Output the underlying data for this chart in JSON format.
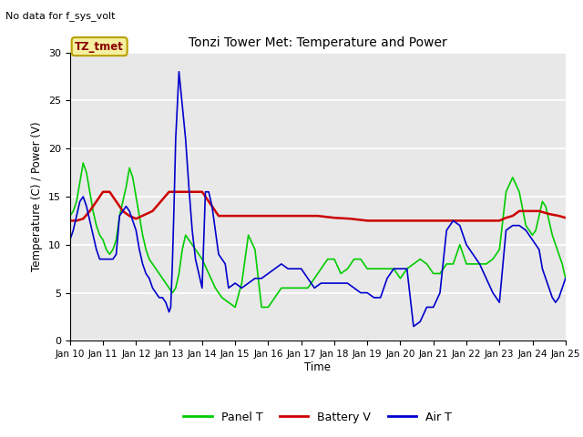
{
  "title": "Tonzi Tower Met: Temperature and Power",
  "ylabel": "Temperature (C) / Power (V)",
  "xlabel": "Time",
  "no_data_text": "No data for f_sys_volt",
  "legend_label": "TZ_tmet",
  "ylim": [
    0,
    30
  ],
  "xlim": [
    0,
    15
  ],
  "bg_color": "#ffffff",
  "plot_bg_color": "#e8e8e8",
  "x_tick_labels": [
    "Jan 10",
    "Jan 11",
    "Jan 12",
    "Jan 13",
    "Jan 14",
    "Jan 15",
    "Jan 16",
    "Jan 17",
    "Jan 18",
    "Jan 19",
    "Jan 20",
    "Jan 21",
    "Jan 22",
    "Jan 23",
    "Jan 24",
    "Jan 25"
  ],
  "panel_T_color": "#00cc00",
  "battery_V_color": "#cc0000",
  "air_T_color": "#0000cc",
  "panel_T_x": [
    0.0,
    0.1,
    0.2,
    0.3,
    0.4,
    0.5,
    0.6,
    0.7,
    0.8,
    0.9,
    1.0,
    1.1,
    1.2,
    1.3,
    1.4,
    1.5,
    1.6,
    1.7,
    1.8,
    1.9,
    2.0,
    2.1,
    2.2,
    2.3,
    2.4,
    2.5,
    2.6,
    2.7,
    2.8,
    2.9,
    3.0,
    3.1,
    3.2,
    3.3,
    3.4,
    3.5,
    3.6,
    3.7,
    3.8,
    3.9,
    4.0,
    4.2,
    4.4,
    4.6,
    4.8,
    5.0,
    5.2,
    5.4,
    5.6,
    5.8,
    6.0,
    6.2,
    6.4,
    6.6,
    6.8,
    7.0,
    7.2,
    7.4,
    7.6,
    7.8,
    8.0,
    8.2,
    8.4,
    8.6,
    8.8,
    9.0,
    9.2,
    9.4,
    9.6,
    9.8,
    10.0,
    10.2,
    10.4,
    10.6,
    10.8,
    11.0,
    11.2,
    11.4,
    11.6,
    11.8,
    12.0,
    12.2,
    12.4,
    12.6,
    12.8,
    13.0,
    13.2,
    13.4,
    13.6,
    13.8,
    14.0,
    14.1,
    14.2,
    14.3,
    14.4,
    14.5,
    14.6,
    14.7,
    14.8,
    14.9,
    15.0
  ],
  "panel_T_y": [
    13.0,
    13.5,
    14.5,
    16.5,
    18.5,
    17.5,
    15.5,
    13.5,
    12.0,
    11.0,
    10.5,
    9.5,
    9.0,
    9.5,
    10.5,
    13.0,
    14.5,
    16.0,
    18.0,
    17.0,
    15.0,
    13.0,
    11.0,
    9.5,
    8.5,
    8.0,
    7.5,
    7.0,
    6.5,
    6.0,
    5.5,
    5.0,
    5.5,
    7.0,
    9.5,
    11.0,
    10.5,
    10.0,
    9.5,
    9.0,
    8.5,
    7.0,
    5.5,
    4.5,
    4.0,
    3.5,
    6.0,
    11.0,
    9.5,
    3.5,
    3.5,
    4.5,
    5.5,
    5.5,
    5.5,
    5.5,
    5.5,
    6.5,
    7.5,
    8.5,
    8.5,
    7.0,
    7.5,
    8.5,
    8.5,
    7.5,
    7.5,
    7.5,
    7.5,
    7.5,
    6.5,
    7.5,
    8.0,
    8.5,
    8.0,
    7.0,
    7.0,
    8.0,
    8.0,
    10.0,
    8.0,
    8.0,
    8.0,
    8.0,
    8.5,
    9.5,
    15.5,
    17.0,
    15.5,
    12.0,
    11.0,
    11.5,
    13.0,
    14.5,
    14.0,
    12.5,
    11.0,
    10.0,
    9.0,
    8.0,
    6.5
  ],
  "battery_V_x": [
    0.0,
    0.2,
    0.4,
    0.6,
    0.8,
    1.0,
    1.2,
    1.4,
    1.6,
    1.8,
    2.0,
    2.5,
    3.0,
    3.5,
    4.0,
    4.5,
    5.0,
    5.5,
    6.0,
    6.5,
    7.0,
    7.5,
    8.0,
    8.5,
    9.0,
    9.5,
    10.0,
    10.5,
    11.0,
    11.5,
    12.0,
    12.5,
    13.0,
    13.2,
    13.4,
    13.6,
    13.8,
    14.0,
    14.2,
    14.5,
    14.8,
    15.0
  ],
  "battery_V_y": [
    12.5,
    12.5,
    12.7,
    13.5,
    14.5,
    15.5,
    15.5,
    14.5,
    13.5,
    13.0,
    12.7,
    13.5,
    15.5,
    15.5,
    15.5,
    13.0,
    13.0,
    13.0,
    13.0,
    13.0,
    13.0,
    13.0,
    12.8,
    12.7,
    12.5,
    12.5,
    12.5,
    12.5,
    12.5,
    12.5,
    12.5,
    12.5,
    12.5,
    12.8,
    13.0,
    13.5,
    13.5,
    13.5,
    13.5,
    13.2,
    13.0,
    12.8
  ],
  "air_T_x": [
    0.0,
    0.1,
    0.2,
    0.3,
    0.4,
    0.5,
    0.6,
    0.7,
    0.8,
    0.9,
    1.0,
    1.1,
    1.2,
    1.3,
    1.4,
    1.5,
    1.6,
    1.7,
    1.8,
    1.9,
    2.0,
    2.1,
    2.2,
    2.3,
    2.4,
    2.5,
    2.6,
    2.7,
    2.8,
    2.9,
    3.0,
    3.05,
    3.1,
    3.15,
    3.2,
    3.3,
    3.4,
    3.5,
    3.6,
    3.7,
    3.8,
    3.9,
    4.0,
    4.1,
    4.2,
    4.3,
    4.4,
    4.5,
    4.6,
    4.7,
    4.8,
    5.0,
    5.2,
    5.4,
    5.6,
    5.8,
    6.0,
    6.2,
    6.4,
    6.6,
    6.8,
    7.0,
    7.2,
    7.4,
    7.6,
    7.8,
    8.0,
    8.2,
    8.4,
    8.6,
    8.8,
    9.0,
    9.2,
    9.4,
    9.6,
    9.8,
    10.0,
    10.2,
    10.4,
    10.6,
    10.8,
    11.0,
    11.2,
    11.4,
    11.6,
    11.8,
    12.0,
    12.2,
    12.4,
    12.6,
    12.8,
    13.0,
    13.2,
    13.4,
    13.6,
    13.8,
    14.0,
    14.1,
    14.2,
    14.3,
    14.4,
    14.5,
    14.6,
    14.7,
    14.8,
    14.9,
    15.0
  ],
  "air_T_y": [
    10.5,
    11.5,
    13.0,
    14.5,
    15.0,
    14.0,
    12.5,
    11.0,
    9.5,
    8.5,
    8.5,
    8.5,
    8.5,
    8.5,
    9.0,
    13.0,
    13.5,
    14.0,
    13.5,
    12.5,
    11.5,
    9.5,
    8.0,
    7.0,
    6.5,
    5.5,
    5.0,
    4.5,
    4.5,
    4.0,
    3.0,
    3.5,
    8.0,
    14.0,
    21.0,
    28.0,
    24.5,
    21.0,
    16.0,
    11.5,
    8.5,
    7.0,
    5.5,
    15.5,
    15.5,
    14.0,
    11.5,
    9.0,
    8.5,
    8.0,
    5.5,
    6.0,
    5.5,
    6.0,
    6.5,
    6.5,
    7.0,
    7.5,
    8.0,
    7.5,
    7.5,
    7.5,
    6.5,
    5.5,
    6.0,
    6.0,
    6.0,
    6.0,
    6.0,
    5.5,
    5.0,
    5.0,
    4.5,
    4.5,
    6.5,
    7.5,
    7.5,
    7.5,
    1.5,
    2.0,
    3.5,
    3.5,
    5.0,
    11.5,
    12.5,
    12.0,
    10.0,
    9.0,
    8.0,
    6.5,
    5.0,
    4.0,
    11.5,
    12.0,
    12.0,
    11.5,
    10.5,
    10.0,
    9.5,
    7.5,
    6.5,
    5.5,
    4.5,
    4.0,
    4.5,
    5.5,
    6.5
  ]
}
